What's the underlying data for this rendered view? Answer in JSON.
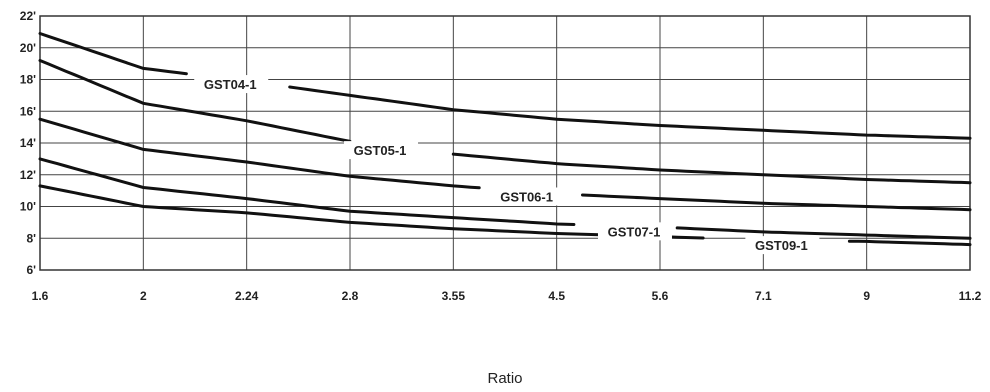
{
  "chart_data": {
    "type": "line",
    "title": "",
    "xlabel": "Ratio",
    "ylabel": "",
    "x_scale": "log",
    "x_ticks": [
      "1.6",
      "2",
      "2.24",
      "2.8",
      "3.55",
      "4.5",
      "5.6",
      "7.1",
      "9",
      "11.2"
    ],
    "y_ticks": [
      "6'",
      "8'",
      "10'",
      "12'",
      "14'",
      "16'",
      "18'",
      "20'",
      "22'"
    ],
    "ylim": [
      6,
      22
    ],
    "grid": true,
    "x": [
      1.6,
      2,
      2.24,
      2.8,
      3.55,
      4.5,
      5.6,
      7.1,
      9,
      11.2
    ],
    "series": [
      {
        "name": "GST04-1",
        "values": [
          20.9,
          18.7,
          17.9,
          17.0,
          16.1,
          15.5,
          15.1,
          14.8,
          14.5,
          14.3
        ]
      },
      {
        "name": "GST05-1",
        "values": [
          19.2,
          16.5,
          15.4,
          14.1,
          13.3,
          12.7,
          12.3,
          12.0,
          11.7,
          11.5
        ]
      },
      {
        "name": "GST06-1",
        "values": [
          15.5,
          13.6,
          12.8,
          11.9,
          11.3,
          10.8,
          10.5,
          10.2,
          10.0,
          9.8
        ]
      },
      {
        "name": "GST07-1",
        "values": [
          13.0,
          11.2,
          10.5,
          9.7,
          9.3,
          8.9,
          8.7,
          8.4,
          8.2,
          8.0
        ]
      },
      {
        "name": "GST09-1",
        "values": [
          11.3,
          10.0,
          9.6,
          9.0,
          8.6,
          8.3,
          8.1,
          7.9,
          7.8,
          7.6
        ]
      }
    ]
  }
}
